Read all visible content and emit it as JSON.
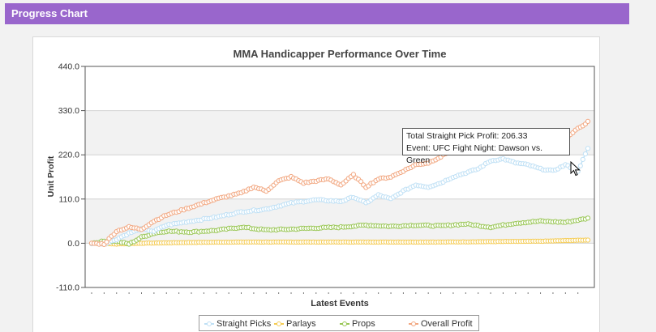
{
  "header": {
    "title": "Progress Chart"
  },
  "tooltip": {
    "line1": "Total Straight Pick Profit: 206.33",
    "line2": "Event: UFC Fight Night: Dawson vs. Green"
  },
  "colors": {
    "header_bg": "#9966cc",
    "straight": "#bfe0f5",
    "parlays": "#f5cc55",
    "props": "#99c655",
    "overall": "#f2a882"
  },
  "chart_data": {
    "type": "line",
    "title": "MMA Handicapper Performance Over Time",
    "xlabel": "Latest Events",
    "ylabel": "Unit Profit",
    "ylim": [
      -110,
      440
    ],
    "yticks": [
      -110,
      0,
      110,
      220,
      330,
      440
    ],
    "ytick_labels": [
      "-110.0",
      "0.0",
      "110.0",
      "220.0",
      "330.0",
      "440.0"
    ],
    "x_count": 200,
    "grid": "horizontal bands",
    "legend_position": "bottom",
    "series": [
      {
        "name": "Straight Picks",
        "color": "#bfe0f5",
        "anchors": [
          [
            0,
            0
          ],
          [
            5,
            -2
          ],
          [
            10,
            10
          ],
          [
            15,
            25
          ],
          [
            20,
            35
          ],
          [
            25,
            30
          ],
          [
            30,
            45
          ],
          [
            40,
            55
          ],
          [
            50,
            65
          ],
          [
            60,
            78
          ],
          [
            70,
            85
          ],
          [
            80,
            100
          ],
          [
            90,
            108
          ],
          [
            100,
            104
          ],
          [
            105,
            115
          ],
          [
            110,
            100
          ],
          [
            115,
            120
          ],
          [
            120,
            110
          ],
          [
            125,
            130
          ],
          [
            130,
            145
          ],
          [
            135,
            140
          ],
          [
            140,
            150
          ],
          [
            145,
            165
          ],
          [
            150,
            175
          ],
          [
            155,
            185
          ],
          [
            160,
            205
          ],
          [
            165,
            210
          ],
          [
            170,
            200
          ],
          [
            175,
            195
          ],
          [
            180,
            185
          ],
          [
            185,
            180
          ],
          [
            190,
            195
          ],
          [
            195,
            180
          ],
          [
            199,
            235
          ]
        ]
      },
      {
        "name": "Parlays",
        "color": "#f5cc55",
        "anchors": [
          [
            0,
            0
          ],
          [
            10,
            -2
          ],
          [
            20,
            0
          ],
          [
            40,
            2
          ],
          [
            60,
            3
          ],
          [
            80,
            3
          ],
          [
            100,
            3
          ],
          [
            120,
            3
          ],
          [
            140,
            3
          ],
          [
            160,
            4
          ],
          [
            180,
            5
          ],
          [
            199,
            8
          ]
        ]
      },
      {
        "name": "Props",
        "color": "#99c655",
        "anchors": [
          [
            0,
            0
          ],
          [
            5,
            5
          ],
          [
            10,
            5
          ],
          [
            15,
            -2
          ],
          [
            20,
            15
          ],
          [
            25,
            25
          ],
          [
            30,
            30
          ],
          [
            40,
            28
          ],
          [
            50,
            32
          ],
          [
            60,
            40
          ],
          [
            70,
            33
          ],
          [
            80,
            35
          ],
          [
            90,
            38
          ],
          [
            100,
            40
          ],
          [
            110,
            45
          ],
          [
            120,
            42
          ],
          [
            130,
            45
          ],
          [
            140,
            43
          ],
          [
            150,
            48
          ],
          [
            160,
            40
          ],
          [
            170,
            50
          ],
          [
            180,
            55
          ],
          [
            190,
            52
          ],
          [
            199,
            62
          ]
        ]
      },
      {
        "name": "Overall Profit",
        "color": "#f2a882",
        "anchors": [
          [
            0,
            0
          ],
          [
            5,
            -2
          ],
          [
            10,
            30
          ],
          [
            15,
            40
          ],
          [
            20,
            35
          ],
          [
            25,
            55
          ],
          [
            30,
            70
          ],
          [
            40,
            90
          ],
          [
            50,
            110
          ],
          [
            60,
            125
          ],
          [
            65,
            140
          ],
          [
            70,
            130
          ],
          [
            75,
            155
          ],
          [
            80,
            165
          ],
          [
            85,
            150
          ],
          [
            90,
            155
          ],
          [
            95,
            160
          ],
          [
            100,
            145
          ],
          [
            105,
            170
          ],
          [
            110,
            140
          ],
          [
            115,
            160
          ],
          [
            120,
            165
          ],
          [
            125,
            180
          ],
          [
            130,
            195
          ],
          [
            135,
            200
          ],
          [
            140,
            215
          ],
          [
            145,
            235
          ],
          [
            150,
            245
          ],
          [
            155,
            250
          ],
          [
            160,
            260
          ],
          [
            165,
            250
          ],
          [
            170,
            255
          ],
          [
            175,
            240
          ],
          [
            180,
            250
          ],
          [
            185,
            255
          ],
          [
            190,
            260
          ],
          [
            195,
            285
          ],
          [
            199,
            302
          ]
        ]
      }
    ]
  }
}
